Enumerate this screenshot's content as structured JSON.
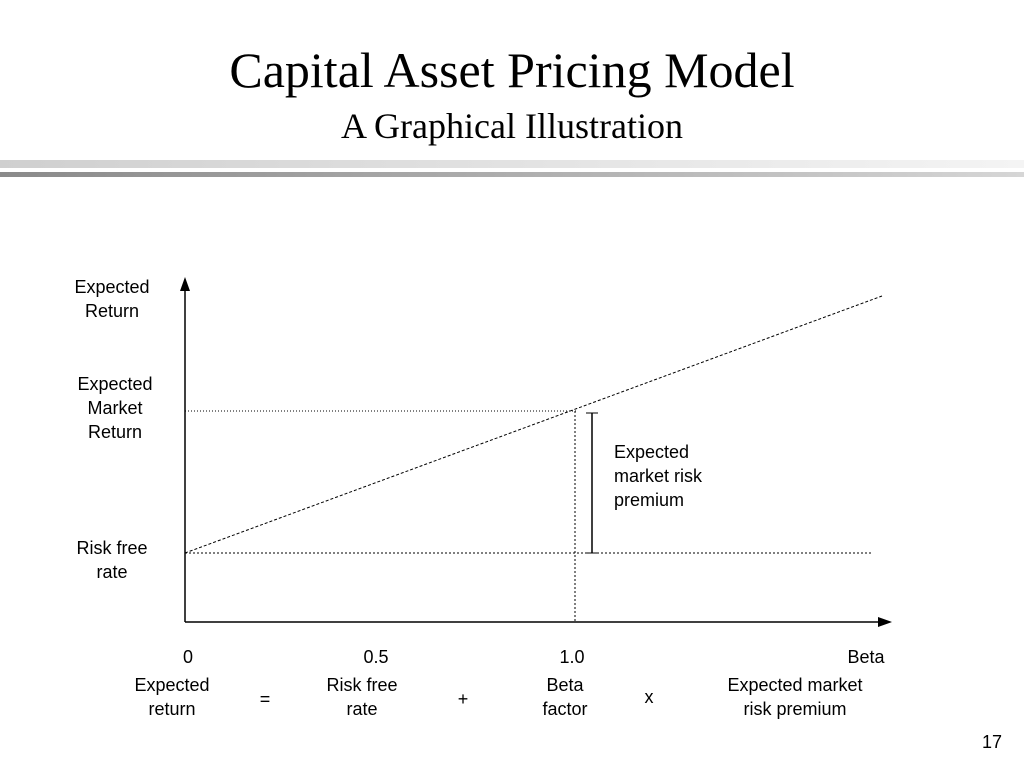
{
  "slide": {
    "title": "Capital Asset Pricing Model",
    "subtitle": "A Graphical Illustration",
    "page_number": "17"
  },
  "diagram": {
    "y_axis_label": "Expected\nReturn",
    "expected_market_return_label": "Expected\nMarket\nReturn",
    "risk_free_rate_label": "Risk free\nrate",
    "premium_label": "Expected\nmarket risk\npremium",
    "x_ticks": [
      "0",
      "0.5",
      "1.0"
    ],
    "x_axis_label": "Beta"
  },
  "formula": {
    "term1": "Expected\nreturn",
    "op1": "=",
    "term2": "Risk free\nrate",
    "op2": "+",
    "term3": "Beta\nfactor",
    "op3": "x",
    "term4": "Expected market\nrisk premium"
  }
}
